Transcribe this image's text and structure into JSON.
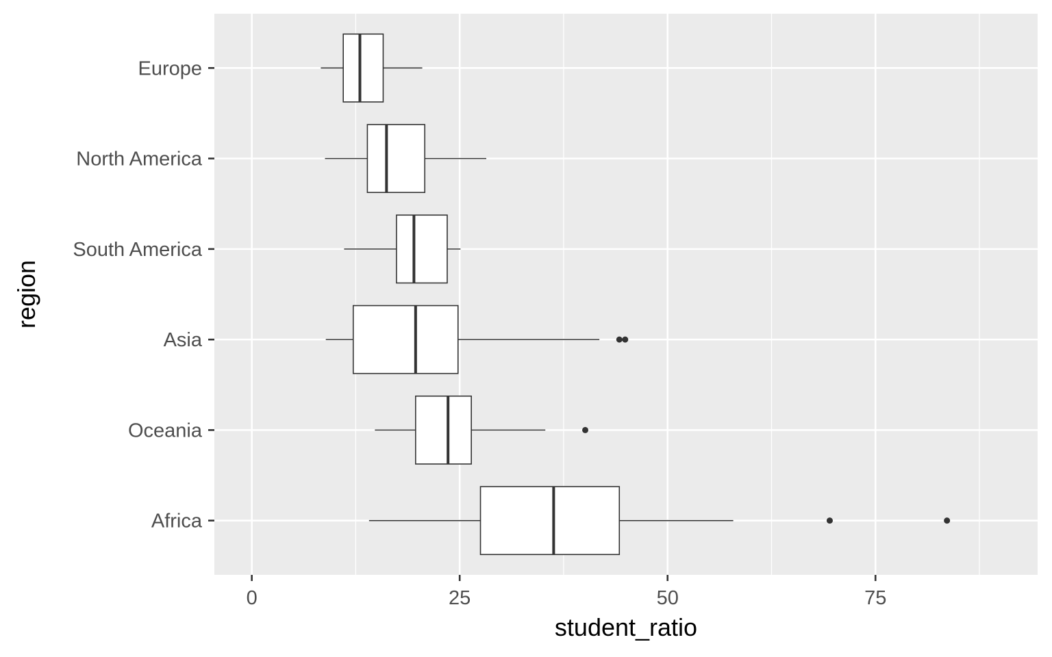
{
  "chart_data": {
    "type": "boxplot",
    "orientation": "horizontal",
    "xlabel": "student_ratio",
    "ylabel": "region",
    "xlim": [
      -4.5,
      94.5
    ],
    "x_ticks": [
      0,
      25,
      50,
      75
    ],
    "x_tick_labels": [
      "0",
      "25",
      "50",
      "75"
    ],
    "grid": true,
    "colors": {
      "panel_background": "#ebebeb",
      "grid_major": "#ffffff",
      "box_fill": "#ffffff",
      "box_stroke": "#333333",
      "tick_text": "#4d4d4d"
    },
    "categories": [
      "Europe",
      "North America",
      "South America",
      "Asia",
      "Oceania",
      "Africa"
    ],
    "boxes": [
      {
        "category": "Europe",
        "whisker_low": 8.3,
        "q1": 11.0,
        "median": 13.0,
        "q3": 15.8,
        "whisker_high": 20.5,
        "outliers": []
      },
      {
        "category": "North America",
        "whisker_low": 8.8,
        "q1": 13.9,
        "median": 16.2,
        "q3": 20.8,
        "whisker_high": 28.2,
        "outliers": []
      },
      {
        "category": "South America",
        "whisker_low": 11.1,
        "q1": 17.4,
        "median": 19.5,
        "q3": 23.5,
        "whisker_high": 25.1,
        "outliers": []
      },
      {
        "category": "Asia",
        "whisker_low": 8.9,
        "q1": 12.2,
        "median": 19.7,
        "q3": 24.8,
        "whisker_high": 41.8,
        "outliers": [
          44.2,
          44.9
        ]
      },
      {
        "category": "Oceania",
        "whisker_low": 14.8,
        "q1": 19.7,
        "median": 23.6,
        "q3": 26.4,
        "whisker_high": 35.3,
        "outliers": [
          40.1
        ]
      },
      {
        "category": "Africa",
        "whisker_low": 14.1,
        "q1": 27.5,
        "median": 36.3,
        "q3": 44.2,
        "whisker_high": 57.9,
        "outliers": [
          69.5,
          83.6
        ]
      }
    ]
  }
}
